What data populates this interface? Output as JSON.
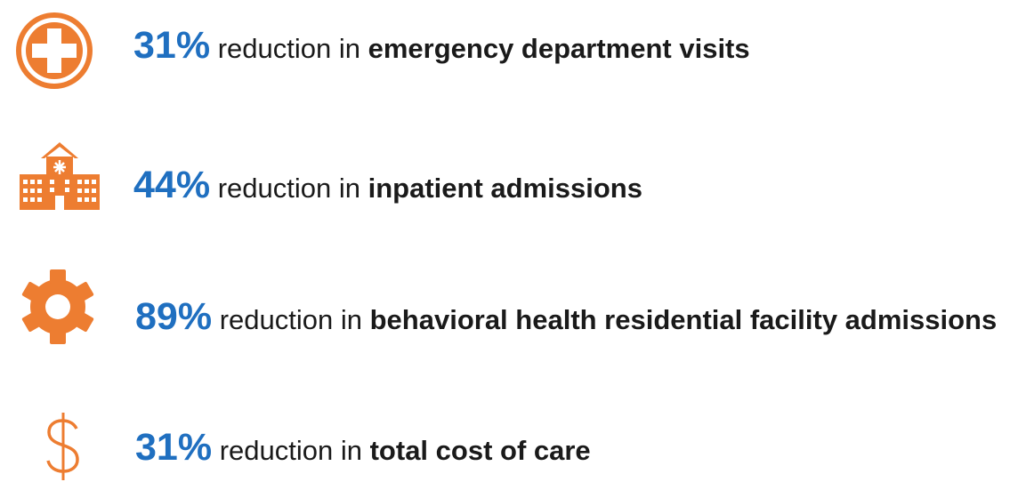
{
  "items": [
    {
      "stat": "31%",
      "text": "reduction in",
      "subject": "emergency department visits"
    },
    {
      "stat": "44%",
      "text": "reduction in",
      "subject": "inpatient admissions"
    },
    {
      "stat": "89%",
      "text": "reduction in",
      "subject": "behavioral health residential facility admissions"
    },
    {
      "stat": "31%",
      "text": "reduction in",
      "subject": "total cost of care"
    }
  ]
}
